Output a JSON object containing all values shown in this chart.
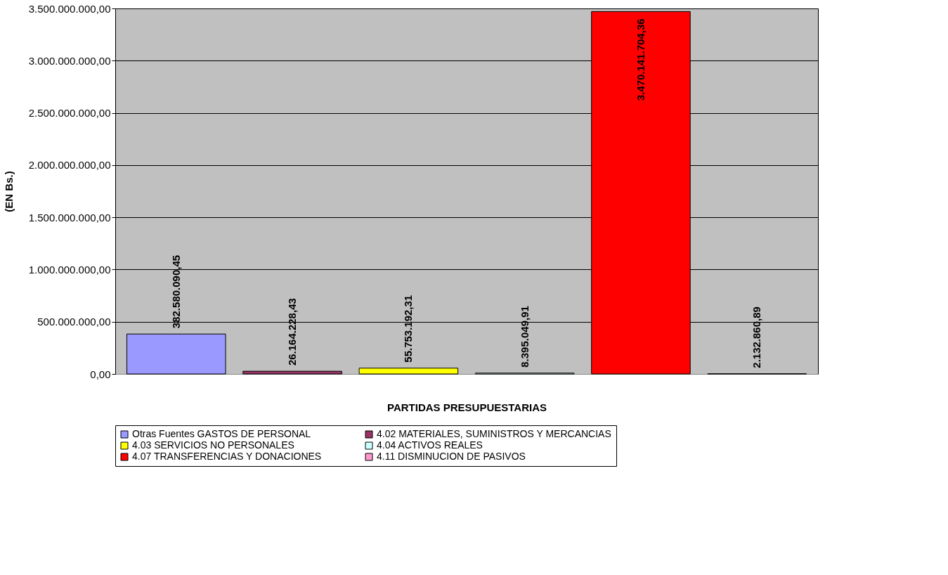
{
  "chart_data": {
    "type": "bar",
    "xlabel": "PARTIDAS PRESUPUESTARIAS",
    "ylabel": "(EN Bs.)",
    "categories": [
      null
    ],
    "series": [
      {
        "name": "Otras Fuentes GASTOS DE PERSONAL",
        "color": "#9999ff",
        "values": [
          382580090.45
        ],
        "value_labels": [
          "382.580.090,45"
        ]
      },
      {
        "name": "4.02 MATERIALES, SUMINISTROS Y MERCANCIAS",
        "color": "#993366",
        "values": [
          26164228.43
        ],
        "value_labels": [
          "26.164.228,43"
        ]
      },
      {
        "name": "4.03 SERVICIOS NO PERSONALES",
        "color": "#ffff00",
        "values": [
          55753192.31
        ],
        "value_labels": [
          "55.753.192,31"
        ]
      },
      {
        "name": "4.04 ACTIVOS REALES",
        "color": "#ccffff",
        "values": [
          8395049.91
        ],
        "value_labels": [
          "8.395.049,91"
        ]
      },
      {
        "name": "4.07 TRANSFERENCIAS Y DONACIONES",
        "color": "#ff0000",
        "values": [
          3470141704.36
        ],
        "value_labels": [
          "3.470.141.704,36"
        ]
      },
      {
        "name": "4.11 DISMINUCION DE PASIVOS",
        "color": "#ff99cc",
        "values": [
          2132860.89
        ],
        "value_labels": [
          "2.132.860,89"
        ]
      }
    ],
    "ylim": [
      0,
      3500000000
    ],
    "yticks": [
      {
        "value": 0,
        "label": "0,00"
      },
      {
        "value": 500000000,
        "label": "500.000.000,00"
      },
      {
        "value": 1000000000,
        "label": "1.000.000.000,00"
      },
      {
        "value": 1500000000,
        "label": "1.500.000.000,00"
      },
      {
        "value": 2000000000,
        "label": "2.000.000.000,00"
      },
      {
        "value": 2500000000,
        "label": "2.500.000.000,00"
      },
      {
        "value": 3000000000,
        "label": "3.000.000.000,00"
      },
      {
        "value": 3500000000,
        "label": "3.500.000.000,00"
      }
    ],
    "grid": "y",
    "legend": "bottom"
  }
}
